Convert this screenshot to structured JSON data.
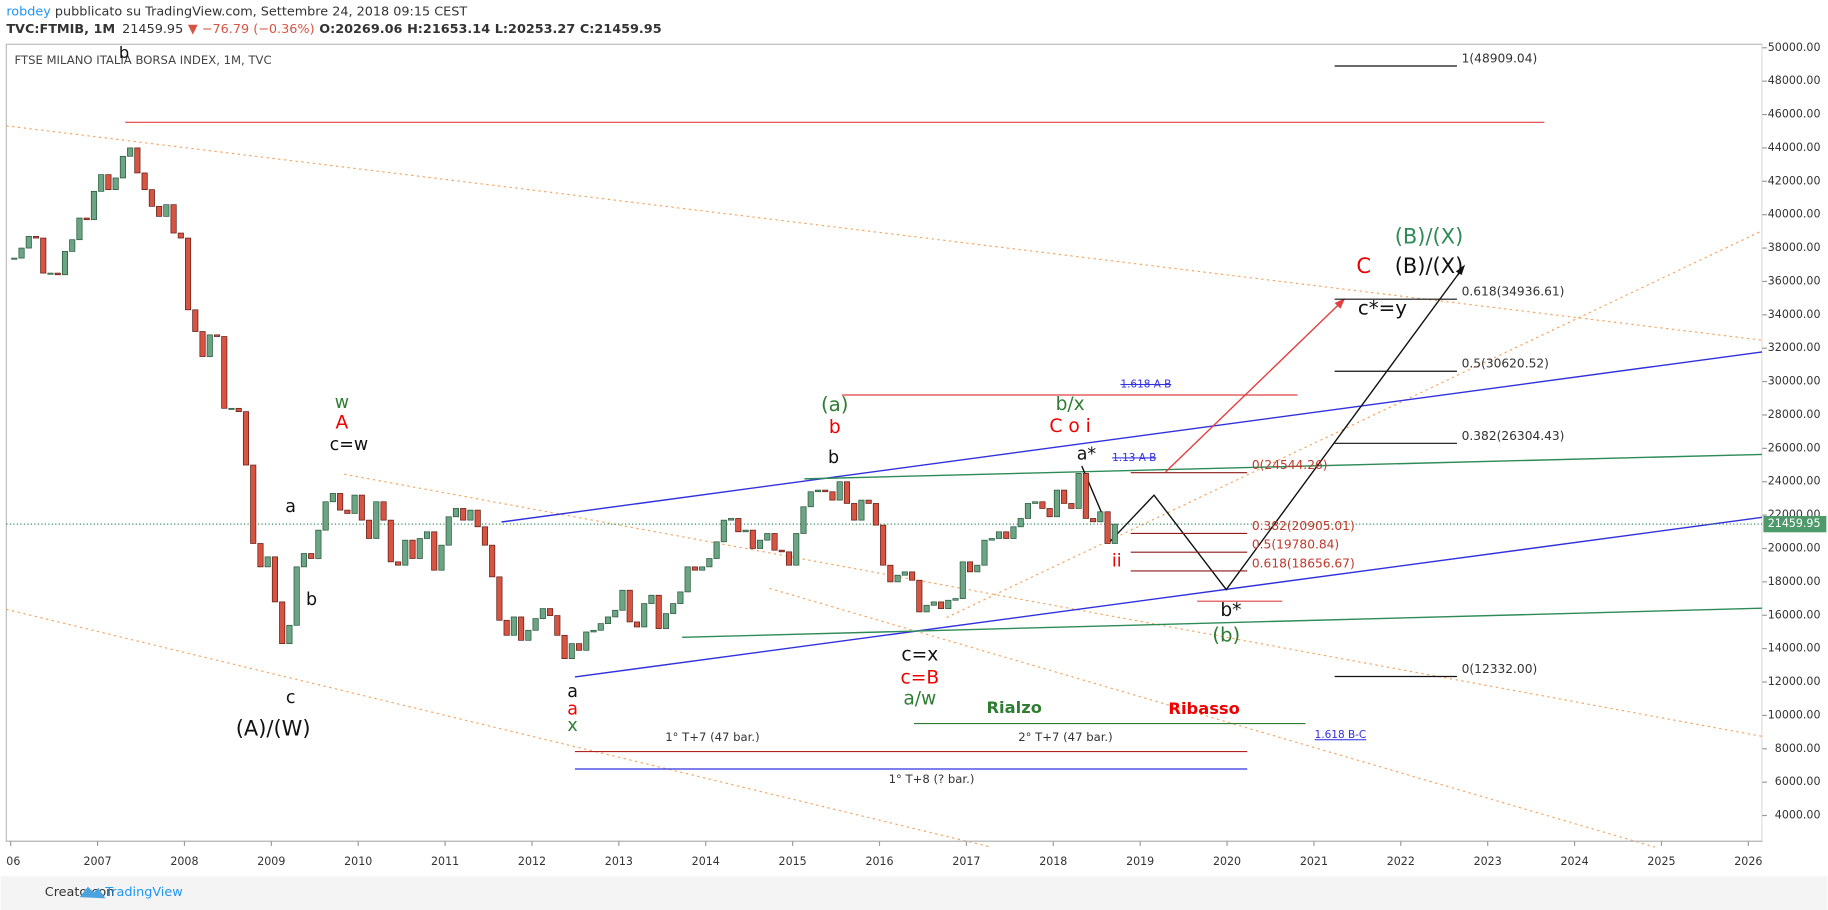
{
  "header": {
    "author": "robdey",
    "published": " pubblicato su TradingView.com, Settembre 24, 2018 09:15 CEST",
    "symbol": "TVC:FTMIB, 1M",
    "price": "21459.95",
    "change": "▼ −76.79 (−0.36%)",
    "open": "O:20269.06",
    "high": "H:21653.14",
    "low": "L:20253.27",
    "close": "C:21459.95"
  },
  "footer": {
    "made_with": "Creato con",
    "brand": "TradingView"
  },
  "chart_data": {
    "type": "candlestick",
    "title": "FTSE MILANO ITALIA BORSA INDEX, 1M, TVC",
    "values": [
      37400,
      38000,
      38700,
      38600,
      36500,
      36500,
      36400,
      37800,
      38500,
      39800,
      39700,
      41400,
      42400,
      41500,
      42200,
      43500,
      44000,
      42500,
      41500,
      40500,
      39900,
      40600,
      38900,
      38600,
      34300,
      33000,
      31500,
      32800,
      32700,
      28400,
      28400,
      28200,
      25000,
      20300,
      18900,
      19500,
      16800,
      14300,
      15400,
      18900,
      19700,
      19400,
      21100,
      22800,
      23300,
      22300,
      22100,
      23200,
      21700,
      20600,
      22800,
      21700,
      19200,
      19000,
      20500,
      19400,
      20600,
      21000,
      18700,
      20200,
      21900,
      22400,
      21700,
      22300,
      21300,
      20200,
      18300,
      15700,
      14800,
      15900,
      14500,
      15100,
      15800,
      16400,
      15980,
      14800,
      13400,
      14300,
      13900,
      15000,
      15100,
      15500,
      15900,
      16300,
      17500,
      15600,
      15300,
      16700,
      17200,
      15200,
      16100,
      16700,
      17400,
      18900,
      18700,
      18900,
      19400,
      20400,
      21700,
      21800,
      21000,
      21100,
      20000,
      20500,
      20900,
      19900,
      19800,
      19000,
      20900,
      22500,
      23400,
      23500,
      23400,
      22900,
      24000,
      22700,
      21700,
      22900,
      22700,
      21400,
      19000,
      18000,
      18400,
      18600,
      18100,
      16200,
      16600,
      16800,
      16400,
      16900,
      17000,
      19200,
      18600,
      19000,
      20500,
      20600,
      21000,
      20600,
      21300,
      21800,
      22700,
      22800,
      22400,
      21900,
      23500,
      22700,
      22400,
      24500,
      21800,
      21600,
      22200,
      20300,
      21459.95
    ],
    "up_color": "#6ba583",
    "down_color": "#d75442",
    "last_price": 21459.95,
    "xlim": [
      2005.95,
      2026.16
    ],
    "xticks": [
      {
        "value": 2006,
        "label": "06"
      },
      2007,
      2008,
      2009,
      2010,
      2011,
      2012,
      2013,
      2014,
      2015,
      2016,
      2017,
      2018,
      2019,
      2020,
      2021,
      2022,
      2023,
      2024,
      2025,
      2026
    ],
    "ylim": [
      2460,
      50210
    ],
    "yticks": [
      {
        "value": 4000,
        "label": "4000.00"
      },
      {
        "value": 6000,
        "label": "6000.00"
      },
      {
        "value": 8000,
        "label": "8000.00"
      },
      {
        "value": 10000,
        "label": "10000.00"
      },
      {
        "value": 12000,
        "label": "12000.00"
      },
      {
        "value": 14000,
        "label": "14000.00"
      },
      {
        "value": 16000,
        "label": "16000.00"
      },
      {
        "value": 18000,
        "label": "18000.00"
      },
      {
        "value": 20000,
        "label": "20000.00"
      },
      {
        "value": 22000,
        "label": "22000.00"
      },
      {
        "value": 24000,
        "label": "24000.00"
      },
      {
        "value": 26000,
        "label": "26000.00"
      },
      {
        "value": 28000,
        "label": "28000.00"
      },
      {
        "value": 30000,
        "label": "30000.00"
      },
      {
        "value": 32000,
        "label": "32000.00"
      },
      {
        "value": 34000,
        "label": "34000.00"
      },
      {
        "value": 36000,
        "label": "36000.00"
      },
      {
        "value": 38000,
        "label": "38000.00"
      },
      {
        "value": 40000,
        "label": "40000.00"
      },
      {
        "value": 42000,
        "label": "42000.00"
      },
      {
        "value": 44000,
        "label": "44000.00"
      },
      {
        "value": 46000,
        "label": "46000.00"
      },
      {
        "value": 48000,
        "label": "48000.00"
      },
      {
        "value": 50000,
        "label": "50000.00"
      }
    ],
    "fib_levels": [
      {
        "value": 48909.04,
        "label": "1(48909.04)"
      },
      {
        "value": 34936.61,
        "label": "0.618(34936.61)"
      },
      {
        "value": 30620.52,
        "label": "0.5(30620.52)"
      },
      {
        "value": 26304.43,
        "label": "0.382(26304.43)"
      },
      {
        "value": 12332.0,
        "label": "0(12332.00)"
      }
    ],
    "fib_levels_red": [
      {
        "value": 24544.26,
        "label": "0(24544.26)"
      },
      {
        "value": 20905.01,
        "label": "0.382(20905.01)"
      },
      {
        "value": 19780.84,
        "label": "0.5(19780.84)"
      },
      {
        "value": 18656.67,
        "label": "0.618(18656.67)"
      }
    ],
    "annotations": [
      "b",
      "w",
      "A",
      "c=w",
      "a",
      "b",
      "c",
      "(A)/(W)",
      "a",
      "a",
      "x",
      "(a)",
      "b",
      "b",
      "b/x",
      "C o i",
      "a*",
      "ii",
      "c=x",
      "c=B",
      "a/w",
      "Rialzo",
      "Ribasso",
      "1° T+7 (47 bar.)",
      "2° T+7 (47 bar.)",
      "1° T+8 (? bar.)",
      "1.618 A-B",
      "1.13 A-B",
      "1.618 B-C",
      "b*",
      "(b)",
      "C",
      "(B)/(X)",
      "(B)/(X)",
      "c*=y"
    ]
  }
}
